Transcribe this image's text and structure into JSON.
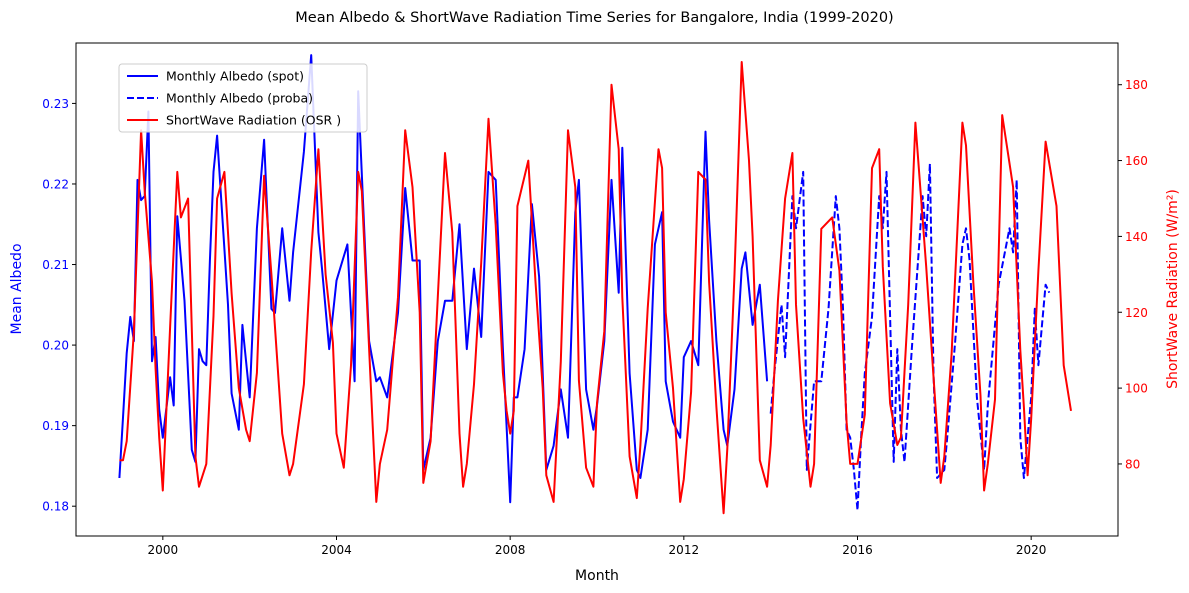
{
  "chart_data": {
    "type": "line",
    "title": "Mean Albedo & ShortWave Radiation Time Series for Bangalore, India (1999-2020)",
    "xlabel": "Month",
    "ylabel_left": "Mean Albedo",
    "ylabel_right": "ShortWave Radiation (W/m²)",
    "xlim": [
      1998.0,
      2022.0
    ],
    "ylim_left": [
      0.1763,
      0.2375
    ],
    "ylim_right": [
      61.0,
      191.0
    ],
    "x_ticks": [
      2000,
      2004,
      2008,
      2012,
      2016,
      2020
    ],
    "x_tick_labels": [
      "2000",
      "2004",
      "2008",
      "2012",
      "2016",
      "2020"
    ],
    "y_left_ticks": [
      0.18,
      0.19,
      0.2,
      0.21,
      0.22,
      0.23
    ],
    "y_left_tick_labels": [
      "0.18",
      "0.19",
      "0.20",
      "0.21",
      "0.22",
      "0.23"
    ],
    "y_right_ticks": [
      80,
      100,
      120,
      140,
      160,
      180
    ],
    "y_right_tick_labels": [
      "80",
      "100",
      "120",
      "140",
      "160",
      "180"
    ],
    "colors": {
      "albedo": "#0000ff",
      "osr": "#ff0000",
      "left_axis": "#0000ff",
      "right_axis": "#ff0000"
    },
    "legend_placement": "upper-left",
    "series": [
      {
        "name": "Monthly Albedo (spot)",
        "axis": "left",
        "style": "solid",
        "x": [
          1999.0,
          1999.083,
          1999.167,
          1999.25,
          1999.333,
          1999.417,
          1999.5,
          1999.583,
          1999.667,
          1999.75,
          1999.833,
          1999.917,
          2000.0,
          2000.167,
          2000.25,
          2000.333,
          2000.5,
          2000.667,
          2000.75,
          2000.833,
          2000.917,
          2001.0,
          2001.083,
          2001.167,
          2001.25,
          2001.5,
          2001.583,
          2001.75,
          2001.833,
          2002.0,
          2002.167,
          2002.333,
          2002.5,
          2002.583,
          2002.75,
          2002.917,
          2003.0,
          2003.25,
          2003.417,
          2003.583,
          2003.667,
          2003.833,
          2004.0,
          2004.25,
          2004.417,
          2004.5,
          2004.75,
          2004.917,
          2005.0,
          2005.167,
          2005.417,
          2005.583,
          2005.75,
          2005.917,
          2006.0,
          2006.167,
          2006.333,
          2006.5,
          2006.667,
          2006.833,
          2007.0,
          2007.167,
          2007.333,
          2007.5,
          2007.667,
          2007.833,
          2008.0,
          2008.083,
          2008.167,
          2008.333,
          2008.5,
          2008.667,
          2008.833,
          2009.0,
          2009.167,
          2009.333,
          2009.5,
          2009.583,
          2009.75,
          2009.917,
          2010.0,
          2010.167,
          2010.333,
          2010.5,
          2010.583,
          2010.75,
          2010.917,
          2011.0,
          2011.167,
          2011.333,
          2011.5,
          2011.583,
          2011.75,
          2011.917,
          2012.0,
          2012.167,
          2012.333,
          2012.5,
          2012.583,
          2012.75,
          2012.917,
          2013.0,
          2013.167,
          2013.333,
          2013.417,
          2013.583,
          2013.75,
          2013.917
        ],
        "values": [
          0.1835,
          0.191,
          0.199,
          0.2035,
          0.2005,
          0.2205,
          0.218,
          0.2185,
          0.229,
          0.198,
          0.201,
          0.192,
          0.1885,
          0.196,
          0.1925,
          0.216,
          0.2055,
          0.187,
          0.1855,
          0.1995,
          0.198,
          0.1975,
          0.2105,
          0.2215,
          0.226,
          0.205,
          0.194,
          0.1895,
          0.2025,
          0.1935,
          0.2145,
          0.2255,
          0.2045,
          0.204,
          0.2145,
          0.2055,
          0.2115,
          0.224,
          0.236,
          0.214,
          0.2095,
          0.1995,
          0.208,
          0.2125,
          0.1955,
          0.2315,
          0.2005,
          0.1955,
          0.196,
          0.1935,
          0.204,
          0.2195,
          0.2105,
          0.2105,
          0.1845,
          0.1885,
          0.2005,
          0.2055,
          0.2055,
          0.215,
          0.1995,
          0.2095,
          0.201,
          0.2215,
          0.2205,
          0.1995,
          0.1805,
          0.1935,
          0.1935,
          0.1995,
          0.2175,
          0.2085,
          0.1845,
          0.1875,
          0.1945,
          0.1885,
          0.2165,
          0.2205,
          0.1945,
          0.1895,
          0.1925,
          0.2005,
          0.2205,
          0.2065,
          0.2245,
          0.1965,
          0.1845,
          0.1835,
          0.1895,
          0.2125,
          0.2165,
          0.1955,
          0.1905,
          0.1885,
          0.1985,
          0.2005,
          0.1975,
          0.2265,
          0.2155,
          0.2005,
          0.1895,
          0.1875,
          0.1945,
          0.2095,
          0.2115,
          0.2025,
          0.2075,
          0.1955
        ]
      },
      {
        "name": "Monthly Albedo (proba)",
        "axis": "left",
        "style": "dashed",
        "x": [
          2014.0,
          2014.083,
          2014.25,
          2014.333,
          2014.5,
          2014.583,
          2014.75,
          2014.833,
          2015.0,
          2015.167,
          2015.333,
          2015.5,
          2015.583,
          2015.667,
          2015.75,
          2015.833,
          2015.917,
          2016.0,
          2016.083,
          2016.167,
          2016.333,
          2016.5,
          2016.583,
          2016.667,
          2016.833,
          2016.917,
          2017.0,
          2017.083,
          2017.25,
          2017.5,
          2017.583,
          2017.667,
          2017.75,
          2017.833,
          2018.0,
          2018.083,
          2018.25,
          2018.417,
          2018.5,
          2018.583,
          2018.75,
          2018.917,
          2019.0,
          2019.083,
          2019.25,
          2019.5,
          2019.583,
          2019.667,
          2019.75,
          2019.833,
          2020.0,
          2020.083,
          2020.167,
          2020.333,
          2020.417
        ],
        "values": [
          0.1915,
          0.1965,
          0.205,
          0.1985,
          0.2185,
          0.2145,
          0.2215,
          0.1845,
          0.1955,
          0.1955,
          0.2045,
          0.2185,
          0.2145,
          0.2045,
          0.1895,
          0.1885,
          0.1845,
          0.1795,
          0.1885,
          0.1965,
          0.2035,
          0.2185,
          0.2145,
          0.2215,
          0.1855,
          0.1995,
          0.1895,
          0.1855,
          0.1995,
          0.2185,
          0.2135,
          0.2225,
          0.1965,
          0.1835,
          0.1845,
          0.1895,
          0.2005,
          0.2125,
          0.2145,
          0.2105,
          0.1935,
          0.1845,
          0.1925,
          0.1975,
          0.2075,
          0.2145,
          0.2115,
          0.2205,
          0.1885,
          0.1835,
          0.1935,
          0.2045,
          0.1975,
          0.2075,
          0.2065
        ]
      },
      {
        "name": "ShortWave Radiation (OSR )",
        "axis": "right",
        "style": "solid",
        "x": [
          1999.0,
          1999.083,
          1999.167,
          1999.333,
          1999.5,
          1999.583,
          1999.75,
          1999.833,
          1999.917,
          2000.0,
          2000.167,
          2000.333,
          2000.417,
          2000.583,
          2000.75,
          2000.833,
          2001.0,
          2001.167,
          2001.25,
          2001.417,
          2001.583,
          2001.75,
          2001.917,
          2002.0,
          2002.167,
          2002.333,
          2002.5,
          2002.667,
          2002.75,
          2002.917,
          2003.0,
          2003.25,
          2003.417,
          2003.583,
          2003.75,
          2003.917,
          2004.0,
          2004.167,
          2004.333,
          2004.5,
          2004.583,
          2004.833,
          2004.917,
          2005.0,
          2005.167,
          2005.417,
          2005.583,
          2005.75,
          2005.917,
          2006.0,
          2006.167,
          2006.333,
          2006.5,
          2006.667,
          2006.833,
          2006.917,
          2007.0,
          2007.167,
          2007.333,
          2007.5,
          2007.667,
          2007.833,
          2007.917,
          2008.0,
          2008.083,
          2008.167,
          2008.417,
          2008.583,
          2008.75,
          2008.833,
          2009.0,
          2009.167,
          2009.333,
          2009.5,
          2009.583,
          2009.75,
          2009.917,
          2010.0,
          2010.167,
          2010.333,
          2010.5,
          2010.583,
          2010.75,
          2010.917,
          2011.0,
          2011.167,
          2011.417,
          2011.5,
          2011.583,
          2011.75,
          2011.917,
          2012.0,
          2012.167,
          2012.333,
          2012.5,
          2012.583,
          2012.75,
          2012.917,
          2013.0,
          2013.167,
          2013.333,
          2013.5,
          2013.583,
          2013.75,
          2013.917,
          2014.0,
          2014.167,
          2014.333,
          2014.5,
          2014.583,
          2014.75,
          2014.917,
          2015.0,
          2015.167,
          2015.417,
          2015.583,
          2015.75,
          2015.833,
          2016.0,
          2016.167,
          2016.333,
          2016.5,
          2016.583,
          2016.75,
          2016.917,
          2017.0,
          2017.167,
          2017.333,
          2017.583,
          2017.75,
          2017.917,
          2018.0,
          2018.167,
          2018.417,
          2018.5,
          2018.667,
          2018.833,
          2018.917,
          2019.0,
          2019.167,
          2019.333,
          2019.583,
          2019.75,
          2019.833,
          2019.917,
          2020.0,
          2020.167,
          2020.333,
          2020.583,
          2020.75,
          2020.917
        ],
        "values": [
          81,
          81,
          86,
          115,
          168,
          152,
          128,
          105,
          87,
          73,
          116,
          157,
          145,
          150,
          82,
          74,
          80,
          119,
          150,
          157,
          125,
          100,
          89,
          86,
          104,
          156,
          130,
          102,
          88,
          77,
          80,
          101,
          136,
          163,
          130,
          112,
          88,
          79,
          106,
          157,
          152,
          90,
          70,
          80,
          89,
          124,
          168,
          153,
          120,
          75,
          86,
          124,
          162,
          141,
          88,
          74,
          80,
          101,
          133,
          171,
          143,
          104,
          94,
          88,
          94,
          148,
          160,
          128,
          100,
          77,
          70,
          107,
          168,
          153,
          102,
          79,
          74,
          96,
          115,
          180,
          163,
          124,
          82,
          71,
          85,
          121,
          163,
          158,
          120,
          100,
          70,
          76,
          99,
          157,
          155,
          128,
          95,
          67,
          84,
          130,
          186,
          160,
          140,
          81,
          74,
          85,
          123,
          150,
          162,
          122,
          92,
          74,
          80,
          142,
          145,
          131,
          91,
          80,
          80,
          93,
          158,
          163,
          132,
          96,
          85,
          87,
          122,
          170,
          132,
          103,
          75,
          82,
          109,
          170,
          164,
          128,
          98,
          73,
          80,
          97,
          172,
          153,
          110,
          95,
          77,
          92,
          131,
          165,
          148,
          106,
          94
        ]
      }
    ]
  }
}
